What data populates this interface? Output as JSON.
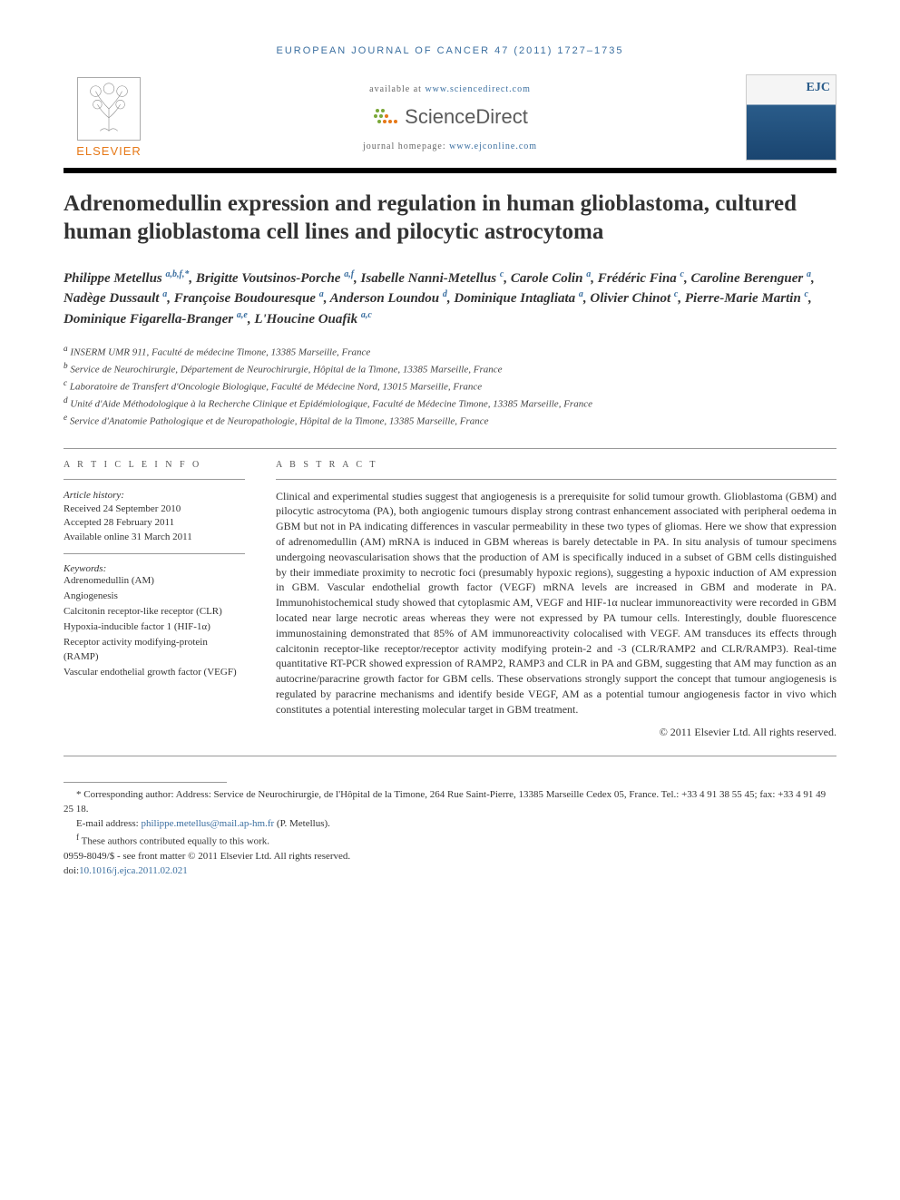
{
  "running_head": "EUROPEAN JOURNAL OF CANCER 47 (2011) 1727–1735",
  "header": {
    "elsevier": "ELSEVIER",
    "available_prefix": "available at ",
    "available_link": "www.sciencedirect.com",
    "sd_brand": "ScienceDirect",
    "homepage_prefix": "journal homepage: ",
    "homepage_link": "www.ejconline.com",
    "journal_abbr": "EJC"
  },
  "title": "Adrenomedullin expression and regulation in human glioblastoma, cultured human glioblastoma cell lines and pilocytic astrocytoma",
  "authors_html": "Philippe Metellus <sup>a,b,f,*</sup>, Brigitte Voutsinos-Porche <sup>a,f</sup>, Isabelle Nanni-Metellus <sup>c</sup>, Carole Colin <sup>a</sup>, Frédéric Fina <sup>c</sup>, Caroline Berenguer <sup>a</sup>, Nadège Dussault <sup>a</sup>, Françoise Boudouresque <sup>a</sup>, Anderson Loundou <sup>d</sup>, Dominique Intagliata <sup>a</sup>, Olivier Chinot <sup>c</sup>, Pierre-Marie Martin <sup>c</sup>, Dominique Figarella-Branger <sup>a,e</sup>, L'Houcine Ouafik <sup>a,c</sup>",
  "affiliations": [
    {
      "mark": "a",
      "text": "INSERM UMR 911, Faculté de médecine Timone, 13385 Marseille, France"
    },
    {
      "mark": "b",
      "text": "Service de Neurochirurgie, Département de Neurochirurgie, Hôpital de la Timone, 13385 Marseille, France"
    },
    {
      "mark": "c",
      "text": "Laboratoire de Transfert d'Oncologie Biologique, Faculté de Médecine Nord, 13015 Marseille, France"
    },
    {
      "mark": "d",
      "text": "Unité d'Aide Méthodologique à la Recherche Clinique et Epidémiologique, Faculté de Médecine Timone, 13385 Marseille, France"
    },
    {
      "mark": "e",
      "text": "Service d'Anatomie Pathologique et de Neuropathologie, Hôpital de la Timone, 13385 Marseille, France"
    }
  ],
  "info_head": "A R T I C L E   I N F O",
  "abstract_head": "A B S T R A C T",
  "history": {
    "label": "Article history:",
    "received": "Received 24 September 2010",
    "accepted": "Accepted 28 February 2011",
    "online": "Available online 31 March 2011"
  },
  "keywords_label": "Keywords:",
  "keywords": [
    "Adrenomedullin (AM)",
    "Angiogenesis",
    "Calcitonin receptor-like receptor (CLR)",
    "Hypoxia-inducible factor 1 (HIF-1α)",
    "Receptor activity modifying-protein (RAMP)",
    "Vascular endothelial growth factor (VEGF)"
  ],
  "abstract": "Clinical and experimental studies suggest that angiogenesis is a prerequisite for solid tumour growth. Glioblastoma (GBM) and pilocytic astrocytoma (PA), both angiogenic tumours display strong contrast enhancement associated with peripheral oedema in GBM but not in PA indicating differences in vascular permeability in these two types of gliomas. Here we show that expression of adrenomedullin (AM) mRNA is induced in GBM whereas is barely detectable in PA. In situ analysis of tumour specimens undergoing neovascularisation shows that the production of AM is specifically induced in a subset of GBM cells distinguished by their immediate proximity to necrotic foci (presumably hypoxic regions), suggesting a hypoxic induction of AM expression in GBM. Vascular endothelial growth factor (VEGF) mRNA levels are increased in GBM and moderate in PA. Immunohistochemical study showed that cytoplasmic AM, VEGF and HIF-1α nuclear immunoreactivity were recorded in GBM located near large necrotic areas whereas they were not expressed by PA tumour cells. Interestingly, double fluorescence immunostaining demonstrated that 85% of AM immunoreactivity colocalised with VEGF. AM transduces its effects through calcitonin receptor-like receptor/receptor activity modifying protein-2 and -3 (CLR/RAMP2 and CLR/RAMP3). Real-time quantitative RT-PCR showed expression of RAMP2, RAMP3 and CLR in PA and GBM, suggesting that AM may function as an autocrine/paracrine growth factor for GBM cells. These observations strongly support the concept that tumour angiogenesis is regulated by paracrine mechanisms and identify beside VEGF, AM as a potential tumour angiogenesis factor in vivo which constitutes a potential interesting molecular target in GBM treatment.",
  "copyright": "© 2011 Elsevier Ltd. All rights reserved.",
  "footnotes": {
    "corresponding": "* Corresponding author: Address: Service de Neurochirurgie, de l'Hôpital de la Timone, 264 Rue Saint-Pierre, 13385 Marseille Cedex 05, France. Tel.: +33 4 91 38 55 45; fax: +33 4 91 49 25 18.",
    "email_label": "E-mail address: ",
    "email": "philippe.metellus@mail.ap-hm.fr",
    "email_suffix": " (P. Metellus).",
    "equal": "f These authors contributed equally to this work.",
    "issn": "0959-8049/$ - see front matter © 2011 Elsevier Ltd. All rights reserved.",
    "doi_prefix": "doi:",
    "doi": "10.1016/j.ejca.2011.02.021"
  },
  "colors": {
    "link": "#3b6fa0",
    "elsevier_orange": "#e67817",
    "sd_green": "#7aa838",
    "sd_orange": "#e67817"
  }
}
